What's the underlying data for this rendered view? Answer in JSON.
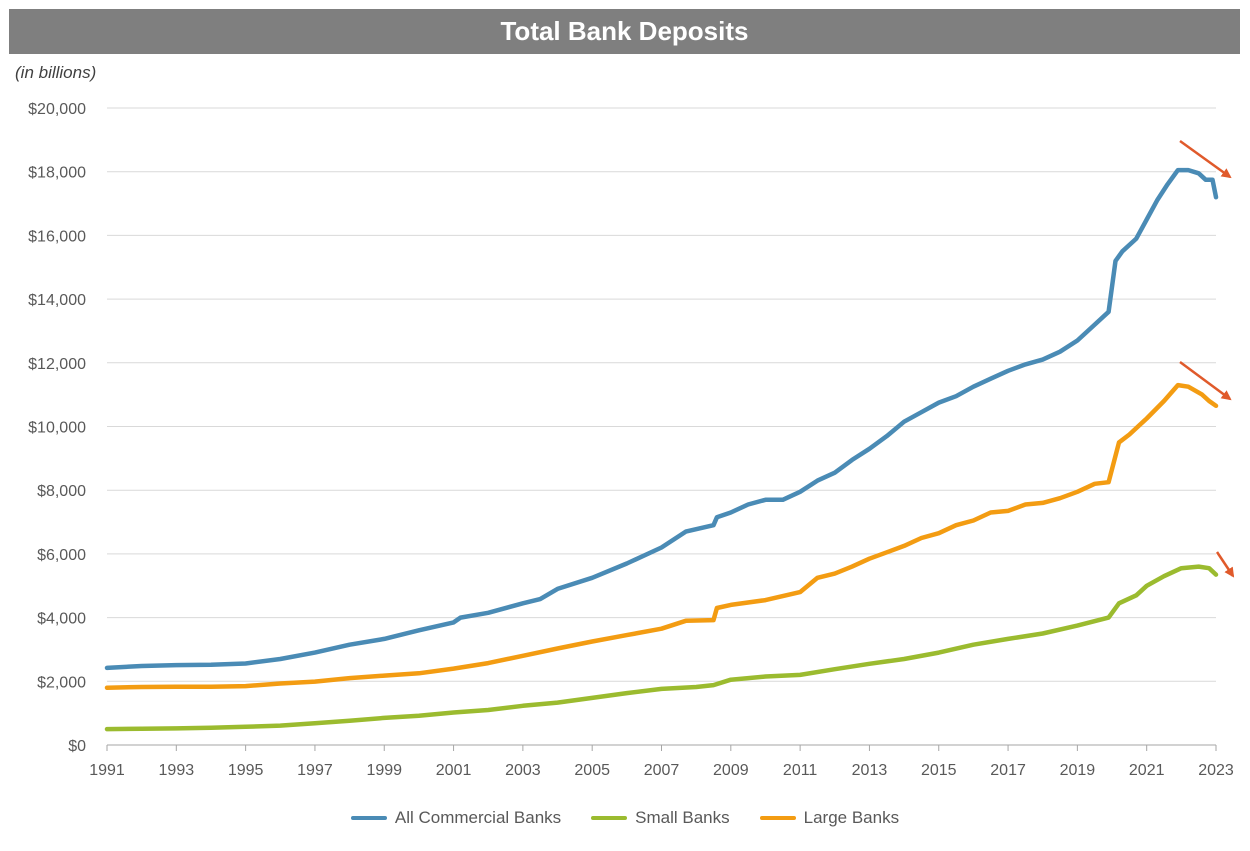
{
  "chart_data": {
    "type": "line",
    "title": "Total Bank Deposits",
    "units_note": "(in billions)",
    "x_ticks": [
      "1991",
      "1993",
      "1995",
      "1997",
      "1999",
      "2001",
      "2003",
      "2005",
      "2007",
      "2009",
      "2011",
      "2013",
      "2015",
      "2017",
      "2019",
      "2021",
      "2023"
    ],
    "y_ticks": [
      "$0",
      "$2,000",
      "$4,000",
      "$6,000",
      "$8,000",
      "$10,000",
      "$12,000",
      "$14,000",
      "$16,000",
      "$18,000",
      "$20,000"
    ],
    "xlim": [
      1991,
      2023
    ],
    "ylim": [
      0,
      20000
    ],
    "grid": "horizontal",
    "legend": "bottom",
    "series": [
      {
        "name": "All Commercial Banks",
        "color": "#4a8bb5",
        "points": [
          [
            1991,
            2420
          ],
          [
            1992,
            2480
          ],
          [
            1993,
            2510
          ],
          [
            1994,
            2520
          ],
          [
            1995,
            2560
          ],
          [
            1996,
            2700
          ],
          [
            1997,
            2900
          ],
          [
            1998,
            3150
          ],
          [
            1999,
            3330
          ],
          [
            2000,
            3600
          ],
          [
            2001,
            3850
          ],
          [
            2001.2,
            4000
          ],
          [
            2002,
            4150
          ],
          [
            2003,
            4450
          ],
          [
            2003.5,
            4580
          ],
          [
            2004,
            4900
          ],
          [
            2005,
            5250
          ],
          [
            2006,
            5700
          ],
          [
            2007,
            6200
          ],
          [
            2007.7,
            6700
          ],
          [
            2008.5,
            6900
          ],
          [
            2008.6,
            7150
          ],
          [
            2009,
            7300
          ],
          [
            2009.5,
            7550
          ],
          [
            2010,
            7700
          ],
          [
            2010.5,
            7700
          ],
          [
            2011,
            7950
          ],
          [
            2011.5,
            8300
          ],
          [
            2012,
            8550
          ],
          [
            2012.5,
            8950
          ],
          [
            2013,
            9300
          ],
          [
            2013.5,
            9700
          ],
          [
            2014,
            10150
          ],
          [
            2014.5,
            10450
          ],
          [
            2015,
            10750
          ],
          [
            2015.5,
            10950
          ],
          [
            2016,
            11250
          ],
          [
            2016.5,
            11500
          ],
          [
            2017,
            11750
          ],
          [
            2017.5,
            11950
          ],
          [
            2018,
            12100
          ],
          [
            2018.5,
            12350
          ],
          [
            2019,
            12700
          ],
          [
            2019.5,
            13200
          ],
          [
            2019.9,
            13600
          ],
          [
            2020.1,
            15200
          ],
          [
            2020.3,
            15500
          ],
          [
            2020.7,
            15900
          ],
          [
            2021,
            16500
          ],
          [
            2021.3,
            17100
          ],
          [
            2021.6,
            17600
          ],
          [
            2021.9,
            18050
          ],
          [
            2022.2,
            18050
          ],
          [
            2022.5,
            17950
          ],
          [
            2022.7,
            17750
          ],
          [
            2022.9,
            17750
          ],
          [
            2023,
            17200
          ]
        ]
      },
      {
        "name": "Small Banks",
        "color": "#9bbb2f",
        "points": [
          [
            1991,
            500
          ],
          [
            1992,
            510
          ],
          [
            1993,
            520
          ],
          [
            1994,
            540
          ],
          [
            1995,
            570
          ],
          [
            1996,
            610
          ],
          [
            1997,
            680
          ],
          [
            1998,
            760
          ],
          [
            1999,
            850
          ],
          [
            2000,
            920
          ],
          [
            2001,
            1020
          ],
          [
            2002,
            1100
          ],
          [
            2003,
            1230
          ],
          [
            2004,
            1330
          ],
          [
            2005,
            1480
          ],
          [
            2006,
            1630
          ],
          [
            2007,
            1760
          ],
          [
            2008,
            1820
          ],
          [
            2008.5,
            1880
          ],
          [
            2009,
            2050
          ],
          [
            2010,
            2150
          ],
          [
            2011,
            2200
          ],
          [
            2012,
            2380
          ],
          [
            2013,
            2550
          ],
          [
            2014,
            2700
          ],
          [
            2015,
            2900
          ],
          [
            2016,
            3150
          ],
          [
            2017,
            3330
          ],
          [
            2018,
            3500
          ],
          [
            2019,
            3750
          ],
          [
            2019.9,
            4000
          ],
          [
            2020.2,
            4450
          ],
          [
            2020.7,
            4700
          ],
          [
            2021,
            5000
          ],
          [
            2021.5,
            5300
          ],
          [
            2022,
            5550
          ],
          [
            2022.5,
            5600
          ],
          [
            2022.8,
            5550
          ],
          [
            2023,
            5350
          ]
        ]
      },
      {
        "name": "Large Banks",
        "color": "#f39c12",
        "points": [
          [
            1991,
            1800
          ],
          [
            1992,
            1820
          ],
          [
            1993,
            1830
          ],
          [
            1994,
            1830
          ],
          [
            1995,
            1850
          ],
          [
            1996,
            1930
          ],
          [
            1997,
            1990
          ],
          [
            1998,
            2100
          ],
          [
            1999,
            2180
          ],
          [
            2000,
            2250
          ],
          [
            2001,
            2400
          ],
          [
            2002,
            2570
          ],
          [
            2003,
            2800
          ],
          [
            2004,
            3030
          ],
          [
            2005,
            3250
          ],
          [
            2006,
            3450
          ],
          [
            2007,
            3650
          ],
          [
            2007.7,
            3900
          ],
          [
            2008.5,
            3920
          ],
          [
            2008.6,
            4300
          ],
          [
            2009,
            4400
          ],
          [
            2010,
            4550
          ],
          [
            2011,
            4800
          ],
          [
            2011.5,
            5250
          ],
          [
            2012,
            5380
          ],
          [
            2012.5,
            5600
          ],
          [
            2013,
            5850
          ],
          [
            2013.5,
            6050
          ],
          [
            2014,
            6250
          ],
          [
            2014.5,
            6500
          ],
          [
            2015,
            6650
          ],
          [
            2015.5,
            6900
          ],
          [
            2016,
            7050
          ],
          [
            2016.5,
            7300
          ],
          [
            2017,
            7350
          ],
          [
            2017.5,
            7550
          ],
          [
            2018,
            7600
          ],
          [
            2018.5,
            7750
          ],
          [
            2019,
            7950
          ],
          [
            2019.5,
            8200
          ],
          [
            2019.9,
            8250
          ],
          [
            2020.2,
            9500
          ],
          [
            2020.5,
            9750
          ],
          [
            2021,
            10250
          ],
          [
            2021.5,
            10800
          ],
          [
            2021.9,
            11300
          ],
          [
            2022.2,
            11250
          ],
          [
            2022.6,
            11000
          ],
          [
            2022.8,
            10800
          ],
          [
            2023,
            10650
          ]
        ]
      }
    ]
  }
}
